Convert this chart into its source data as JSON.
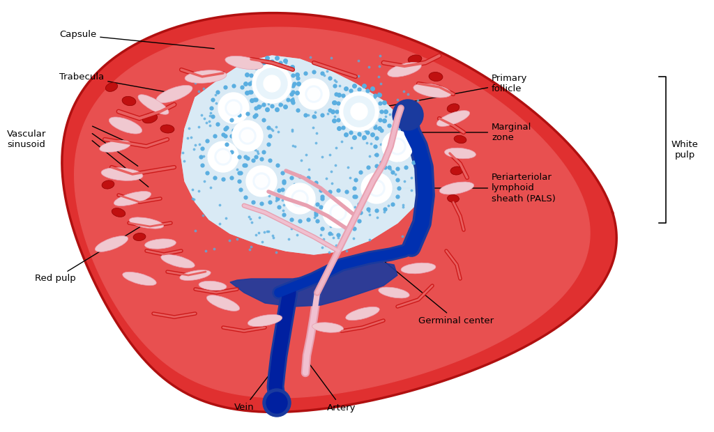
{
  "colors": {
    "bg_color": "#ffffff",
    "red_pulp": "#e03030",
    "red_pulp_dark": "#c01818",
    "red_pulp_medium": "#e85050",
    "capsule_outer": "#d42020",
    "white_pulp_bg": "#d0eaf8",
    "white_pulp_light": "#e8f5fc",
    "follicle_ring": "#5aaee0",
    "follicle_center": "#ffffff",
    "dots_blue": "#5aaee0",
    "germinal_dark": "#003090",
    "vein_blue": "#1a3a9e",
    "artery_pink": "#e8a0b0",
    "trabecula_pink": "#e8b0c0",
    "trabecula_light": "#f0c8d0",
    "red_vessel_dark": "#8b0000",
    "sinusoid_light": "#f0d0d8",
    "line_color": "#000000",
    "text_color": "#000000"
  },
  "labels": {
    "capsule": "Capsule",
    "trabecula": "Trabecula",
    "vascular_sinusoid": "Vascular\nsinusoid",
    "red_pulp": "Red pulp",
    "primary_follicle": "Primary\nfollicle",
    "marginal_zone": "Marginal\nzone",
    "pals": "Periarteriolar\nlymphoid\nsheath (PALS)",
    "white_pulp": "White\npulp",
    "germinal_center": "Germinal center",
    "vein": "Vein",
    "artery": "Artery"
  }
}
